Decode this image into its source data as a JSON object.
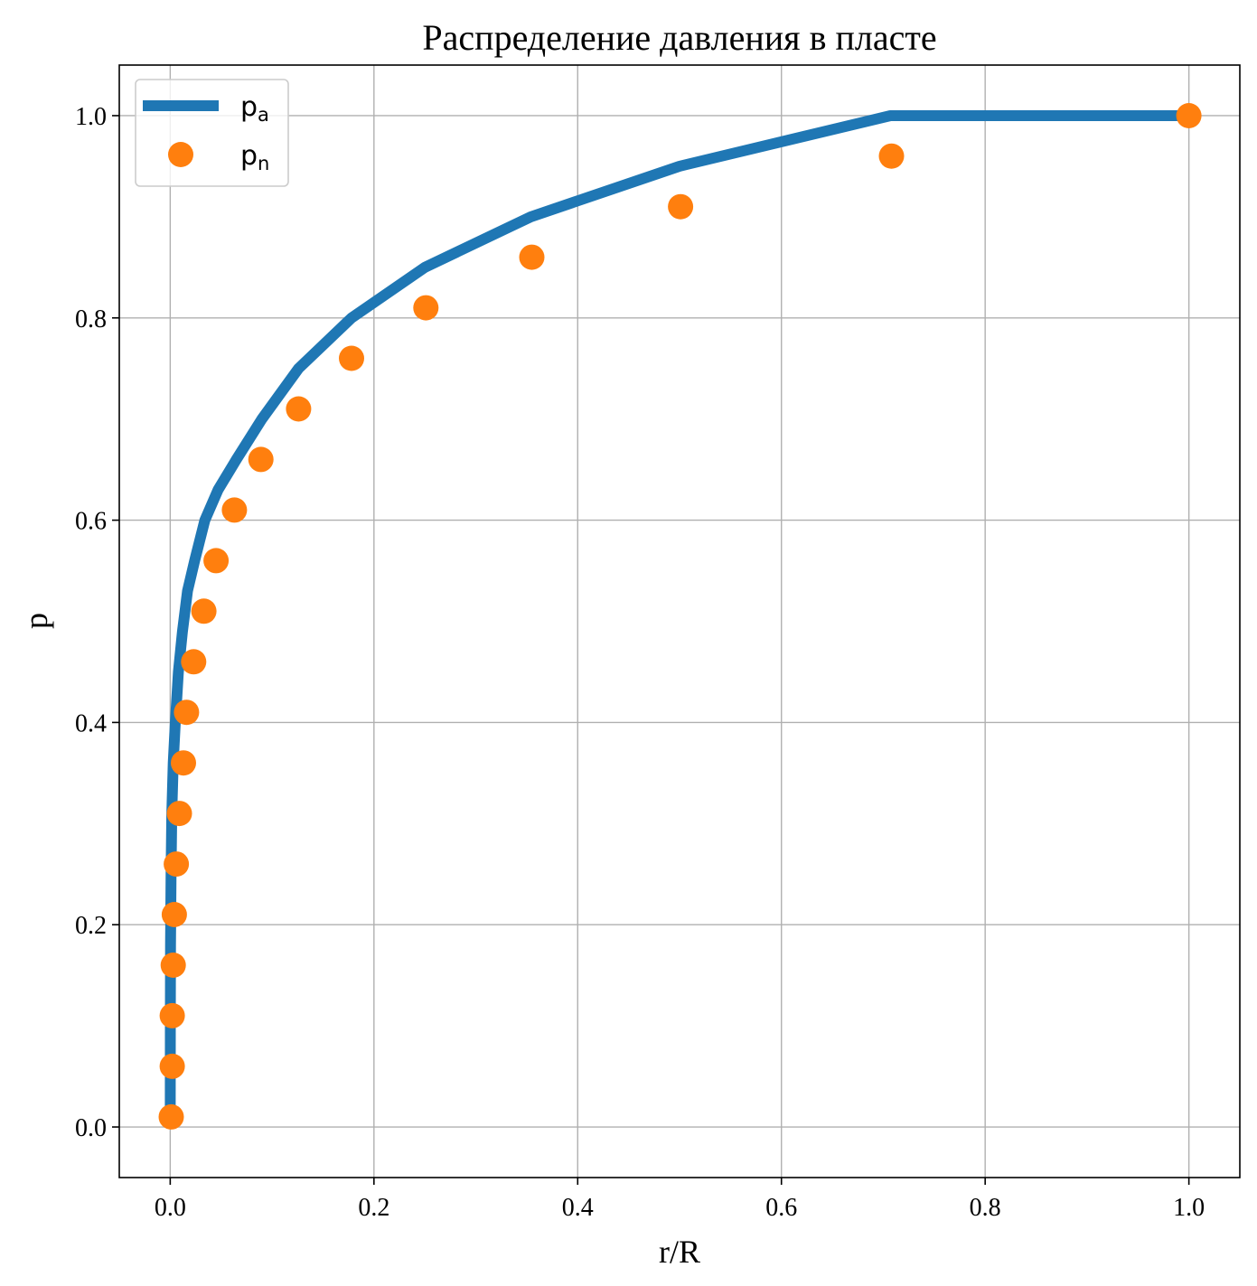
{
  "chart_data": {
    "type": "line",
    "title": "Распределение давления в пласте",
    "xlabel": "r/R",
    "ylabel": "p",
    "xlim": [
      -0.05,
      1.05
    ],
    "ylim": [
      -0.05,
      1.05
    ],
    "xticks": [
      0.0,
      0.2,
      0.4,
      0.6,
      0.8,
      1.0
    ],
    "yticks": [
      0.0,
      0.2,
      0.4,
      0.6,
      0.8,
      1.0
    ],
    "xtick_labels": [
      "0.0",
      "0.2",
      "0.4",
      "0.6",
      "0.8",
      "1.0"
    ],
    "ytick_labels": [
      "0.0",
      "0.2",
      "0.4",
      "0.6",
      "0.8",
      "1.0"
    ],
    "grid": true,
    "legend_position": "upper-left",
    "series": [
      {
        "name": "pa",
        "label_main": "p",
        "label_sub": "a",
        "style": "line",
        "color": "#1f77b4",
        "x": [
          0.0,
          1e-05,
          0.0001,
          0.0003,
          0.0008,
          0.0015,
          0.003,
          0.005,
          0.008,
          0.012,
          0.017,
          0.024,
          0.034,
          0.047,
          0.065,
          0.09,
          0.126,
          0.178,
          0.25,
          0.354,
          0.5,
          0.707,
          1.0
        ],
        "y": [
          0.0,
          0.01,
          0.1,
          0.18,
          0.25,
          0.31,
          0.36,
          0.4,
          0.45,
          0.49,
          0.53,
          0.56,
          0.6,
          0.63,
          0.66,
          0.7,
          0.75,
          0.8,
          0.85,
          0.9,
          0.95,
          1.0,
          1.0
        ]
      },
      {
        "name": "pn",
        "label_main": "p",
        "label_sub": "n",
        "style": "marker",
        "color": "#ff7f0e",
        "x": [
          0.001,
          0.002,
          0.002,
          0.003,
          0.004,
          0.006,
          0.009,
          0.013,
          0.016,
          0.023,
          0.033,
          0.045,
          0.063,
          0.089,
          0.126,
          0.178,
          0.251,
          0.355,
          0.501,
          0.708,
          1.0
        ],
        "y": [
          0.01,
          0.06,
          0.11,
          0.16,
          0.21,
          0.26,
          0.31,
          0.36,
          0.41,
          0.46,
          0.51,
          0.56,
          0.61,
          0.66,
          0.71,
          0.76,
          0.81,
          0.86,
          0.91,
          0.96,
          1.0
        ]
      }
    ]
  }
}
